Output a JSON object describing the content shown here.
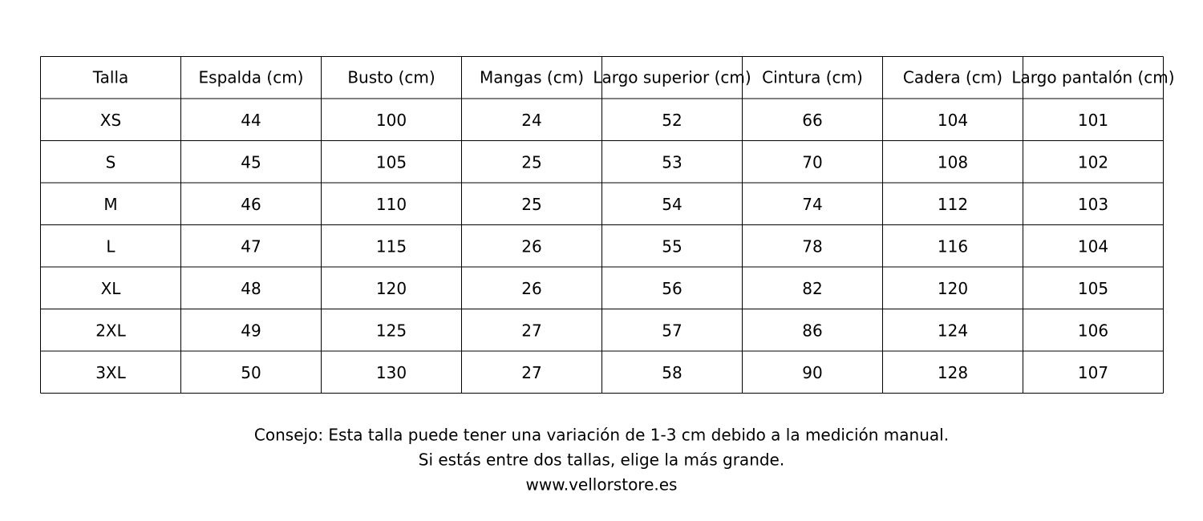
{
  "table": {
    "header": [
      "Talla",
      "Espalda (cm)",
      "Busto (cm)",
      "Mangas (cm)",
      "Largo superior (cm)",
      "Cintura (cm)",
      "Cadera (cm)",
      "Largo pantalón (cm)"
    ],
    "rows": [
      [
        "XS",
        44,
        100,
        24,
        52,
        66,
        104,
        101
      ],
      [
        "S",
        45,
        105,
        25,
        53,
        70,
        108,
        102
      ],
      [
        "M",
        46,
        110,
        25,
        54,
        74,
        112,
        103
      ],
      [
        "L",
        47,
        115,
        26,
        55,
        78,
        116,
        104
      ],
      [
        "XL",
        48,
        120,
        26,
        56,
        82,
        120,
        105
      ],
      [
        "2XL",
        49,
        125,
        27,
        57,
        86,
        124,
        106
      ],
      [
        "3XL",
        50,
        130,
        27,
        58,
        90,
        128,
        107
      ]
    ]
  },
  "notes": [
    "Consejo: Esta talla puede tener una variación de 1-3 cm debido a la medición manual.",
    "Si estás entre dos tallas, elige la más grande.",
    "www.vellorstore.es"
  ]
}
